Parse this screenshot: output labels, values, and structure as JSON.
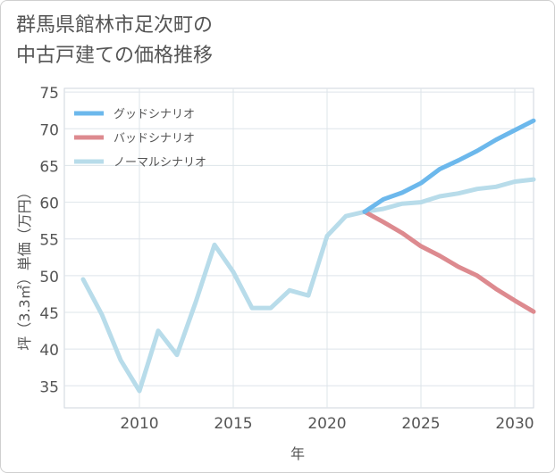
{
  "chart_data": {
    "type": "line",
    "title_lines": [
      "群馬県館林市足次町の",
      "中古戸建ての価格推移"
    ],
    "xlabel": "年",
    "ylabel": "坪（3.3㎡）単価（万円）",
    "xlim": [
      2006,
      2031
    ],
    "ylim": [
      32,
      75.5
    ],
    "xticks": [
      2010,
      2015,
      2020,
      2025,
      2030
    ],
    "yticks": [
      35,
      40,
      45,
      50,
      55,
      60,
      65,
      70,
      75
    ],
    "grid": true,
    "legend_position": "top-left",
    "series": [
      {
        "name": "グッドシナリオ",
        "color": "#6cb8ec",
        "x": [
          2022,
          2023,
          2024,
          2025,
          2026,
          2027,
          2028,
          2029,
          2030,
          2031
        ],
        "y": [
          58.7,
          60.4,
          61.3,
          62.6,
          64.5,
          65.7,
          67.0,
          68.5,
          69.8,
          71.1
        ]
      },
      {
        "name": "バッドシナリオ",
        "color": "#dd8a8f",
        "x": [
          2022,
          2023,
          2024,
          2025,
          2026,
          2027,
          2028,
          2029,
          2030,
          2031
        ],
        "y": [
          58.7,
          57.3,
          55.8,
          54.0,
          52.7,
          51.2,
          50.0,
          48.2,
          46.6,
          45.1
        ]
      },
      {
        "name": "ノーマルシナリオ",
        "color": "#b8dcea",
        "x": [
          2007,
          2008,
          2009,
          2010,
          2011,
          2012,
          2013,
          2014,
          2015,
          2016,
          2017,
          2018,
          2019,
          2020,
          2021,
          2022,
          2023,
          2024,
          2025,
          2026,
          2027,
          2028,
          2029,
          2030,
          2031
        ],
        "y": [
          49.5,
          44.7,
          38.5,
          34.3,
          42.5,
          39.2,
          46.4,
          54.2,
          50.5,
          45.6,
          45.6,
          48.0,
          47.3,
          55.4,
          58.1,
          58.7,
          59.1,
          59.8,
          60.0,
          60.8,
          61.2,
          61.8,
          62.1,
          62.8,
          63.1
        ]
      }
    ]
  }
}
